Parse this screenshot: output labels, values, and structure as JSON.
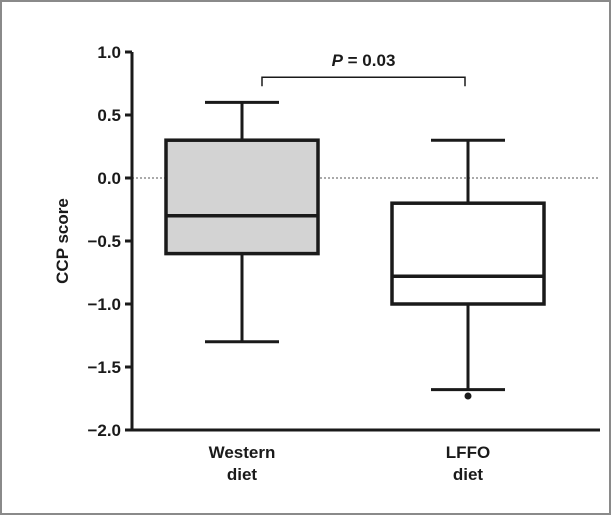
{
  "chart_data": {
    "type": "box",
    "ylabel": "CCP score",
    "xlabel": "",
    "title": "",
    "ylim": [
      -2.0,
      1.0
    ],
    "yticks": [
      1.0,
      0.5,
      0.0,
      -0.5,
      -1.0,
      -1.5,
      -2.0
    ],
    "ytick_labels": [
      "1.0",
      "0.5",
      "0.0",
      "−0.5",
      "−1.0",
      "−1.5",
      "−2.0"
    ],
    "reference_line": 0.0,
    "groups": [
      {
        "label_lines": [
          "Western",
          "diet"
        ],
        "whisker_low": -1.3,
        "q1": -0.6,
        "median": -0.3,
        "q3": 0.3,
        "whisker_high": 0.6,
        "fill": "#d3d3d3",
        "outliers": []
      },
      {
        "label_lines": [
          "LFFO",
          "diet"
        ],
        "whisker_low": -1.68,
        "q1": -1.0,
        "median": -0.78,
        "q3": -0.2,
        "whisker_high": 0.3,
        "fill": "#ffffff",
        "outliers": [
          -1.73
        ]
      }
    ],
    "significance": {
      "p_symbol": "P",
      "p_rest": " = 0.03",
      "y": 0.8
    },
    "grid": false
  }
}
